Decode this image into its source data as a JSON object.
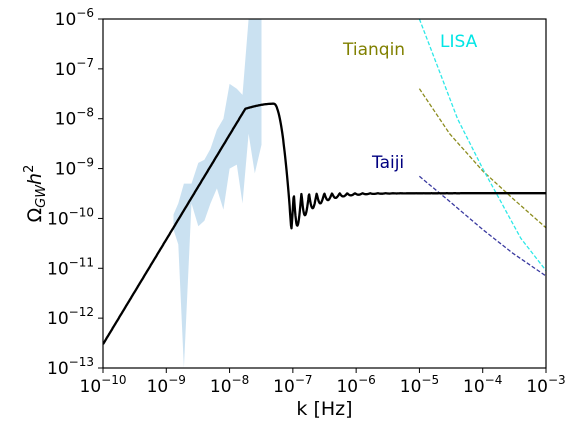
{
  "chart_data": {
    "type": "line",
    "title": "",
    "xlabel": "k [Hz]",
    "ylabel": "Ω_GW h^2",
    "ylabel_parts": {
      "base": "Ω",
      "sub": "GW",
      "mid": "h",
      "sup": "2"
    },
    "x_scale": "log",
    "y_scale": "log",
    "xlim": [
      1e-10,
      0.001
    ],
    "ylim": [
      1e-13,
      1e-06
    ],
    "grid": false,
    "x_ticks": [
      {
        "value": 1e-10,
        "base": "10",
        "exp": "−10"
      },
      {
        "value": 1e-09,
        "base": "10",
        "exp": "−9"
      },
      {
        "value": 1e-08,
        "base": "10",
        "exp": "−8"
      },
      {
        "value": 1e-07,
        "base": "10",
        "exp": "−7"
      },
      {
        "value": 1e-06,
        "base": "10",
        "exp": "−6"
      },
      {
        "value": 1e-05,
        "base": "10",
        "exp": "−5"
      },
      {
        "value": 0.0001,
        "base": "10",
        "exp": "−4"
      },
      {
        "value": 0.001,
        "base": "10",
        "exp": "−3"
      }
    ],
    "y_ticks": [
      {
        "value": 1e-13,
        "base": "10",
        "exp": "−13"
      },
      {
        "value": 1e-12,
        "base": "10",
        "exp": "−12"
      },
      {
        "value": 1e-11,
        "base": "10",
        "exp": "−11"
      },
      {
        "value": 1e-10,
        "base": "10",
        "exp": "−10"
      },
      {
        "value": 1e-09,
        "base": "10",
        "exp": "−9"
      },
      {
        "value": 1e-08,
        "base": "10",
        "exp": "−8"
      },
      {
        "value": 1e-07,
        "base": "10",
        "exp": "−7"
      },
      {
        "value": 1e-06,
        "base": "10",
        "exp": "−6"
      }
    ],
    "main_curve": {
      "color": "#000000",
      "low_k": {
        "x": 1e-10,
        "y": 3e-13,
        "slope": 3
      },
      "peak": {
        "x": 5e-08,
        "y": 2e-08
      },
      "plateau": {
        "y": 3.2e-10
      },
      "oscillation_start": 9e-08,
      "oscillation_end": 1e-06
    },
    "ptа_band": {
      "color": "#9ec8e6",
      "x": [
        1.3e-09,
        1.55e-09,
        1.9e-09,
        2.5e-09,
        3.2e-09,
        4e-09,
        5e-09,
        6.3e-09,
        8e-09,
        1e-08,
        1.3e-08,
        1.6e-08,
        2e-08,
        2.5e-08,
        3.2e-08
      ],
      "y_low": [
        6e-11,
        3e-11,
        1e-13,
        2e-10,
        7e-11,
        9e-11,
        2e-10,
        4e-10,
        1.5e-10,
        1e-09,
        1.2e-09,
        2e-10,
        5e-09,
        8e-10,
        3e-09
      ],
      "y_high": [
        1.2e-10,
        2e-10,
        5e-10,
        5e-10,
        1.3e-09,
        1.5e-09,
        2.5e-09,
        6e-09,
        1e-08,
        5e-08,
        4e-08,
        3e-08,
        1e-06,
        1e-06,
        1e-06
      ]
    },
    "detectors": [
      {
        "name": "Tianqin",
        "color": "#8c8c1e",
        "label_color": "#808000",
        "points": [
          [
            1e-05,
            4e-08
          ],
          [
            3e-05,
            5e-09
          ],
          [
            0.0001,
            9e-10
          ],
          [
            0.0003,
            2.5e-10
          ],
          [
            0.001,
            6.5e-11
          ]
        ]
      },
      {
        "name": "LISA",
        "color": "#2ee8e8",
        "label_color": "#00e5e5",
        "points": [
          [
            1e-05,
            1e-06
          ],
          [
            2e-05,
            1e-07
          ],
          [
            4e-05,
            1e-08
          ],
          [
            0.0001,
            1e-09
          ],
          [
            0.0002,
            2e-10
          ],
          [
            0.0004,
            4e-11
          ],
          [
            0.001,
            9e-12
          ]
        ]
      },
      {
        "name": "Taiji",
        "color": "#3a3aa0",
        "label_color": "#000080",
        "points": [
          [
            1e-05,
            7e-10
          ],
          [
            3e-05,
            2.2e-10
          ],
          [
            0.0001,
            6e-11
          ],
          [
            0.0003,
            2e-11
          ],
          [
            0.001,
            7e-12
          ]
        ]
      }
    ]
  }
}
